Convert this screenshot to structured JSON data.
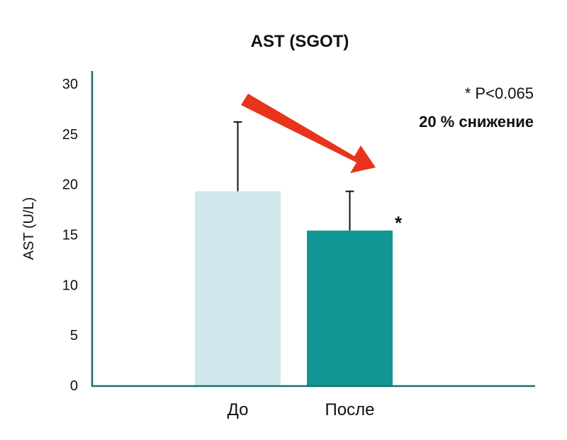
{
  "chart_data": {
    "type": "bar",
    "title": "AST (SGOT)",
    "xlabel": "",
    "ylabel": "AST (U/L)",
    "ylim": [
      0,
      30
    ],
    "yticks": [
      0,
      5,
      10,
      15,
      20,
      25,
      30
    ],
    "categories": [
      "До",
      "После"
    ],
    "values": [
      19.3,
      15.4
    ],
    "error_upper": [
      6.9,
      3.9
    ],
    "colors": [
      "#cfe6ea",
      "#129696"
    ],
    "axis_color": "#1a6e6e",
    "grid": false,
    "annotations": {
      "significance_marker": "*",
      "p_value": "* P<0.065",
      "reduction": "20 % снижение",
      "arrow_color": "#e8341c"
    }
  }
}
